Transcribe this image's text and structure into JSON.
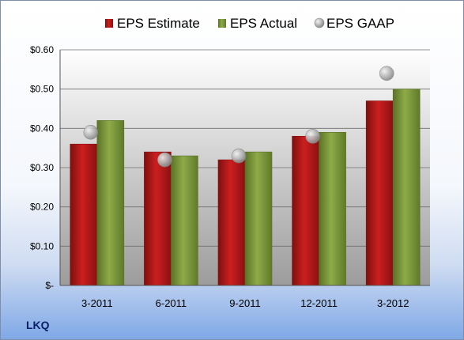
{
  "company": "LKQ",
  "colors": {
    "estimate": "#cc1f1f",
    "actual": "#8eab48",
    "gaap": "#b8b8b8",
    "plot_top": "#ffffff",
    "plot_bottom": "#9c9c9c"
  },
  "chart_data": {
    "type": "bar",
    "categories": [
      "3-2011",
      "6-2011",
      "9-2011",
      "12-2011",
      "3-2012"
    ],
    "series": [
      {
        "name": "EPS Estimate",
        "kind": "bar",
        "values": [
          0.36,
          0.34,
          0.32,
          0.38,
          0.47
        ]
      },
      {
        "name": "EPS Actual",
        "kind": "bar",
        "values": [
          0.42,
          0.33,
          0.34,
          0.39,
          0.5
        ]
      },
      {
        "name": "EPS GAAP",
        "kind": "marker",
        "values": [
          0.39,
          0.32,
          0.33,
          0.38,
          0.54
        ]
      }
    ],
    "ylim": [
      0,
      0.6
    ],
    "yticks": [
      0,
      0.1,
      0.2,
      0.3,
      0.4,
      0.5,
      0.6
    ],
    "ytick_labels": [
      "$-",
      "$0.10",
      "$0.20",
      "$0.30",
      "$0.40",
      "$0.50",
      "$0.60"
    ],
    "grid": true,
    "legend_position": "top"
  }
}
